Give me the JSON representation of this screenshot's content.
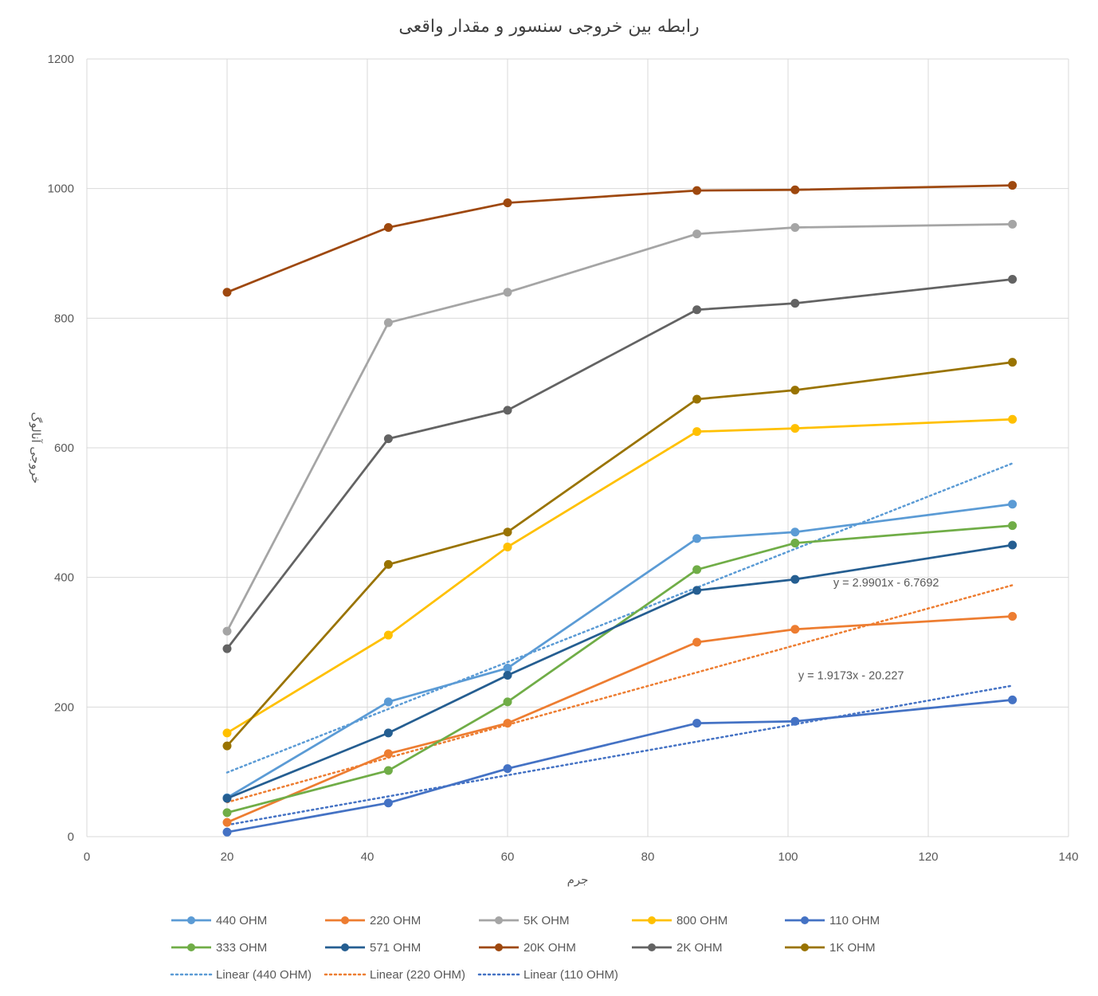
{
  "chart_data": {
    "type": "line",
    "title": "رابطه بین خروجی سنسور و مقدار واقعی",
    "xlabel": "جرم",
    "ylabel": "خروجی آنالوگ",
    "xlim": [
      0,
      140
    ],
    "ylim": [
      0,
      1200
    ],
    "xticks": [
      0,
      20,
      40,
      60,
      80,
      100,
      120,
      140
    ],
    "yticks": [
      0,
      200,
      400,
      600,
      800,
      1000,
      1200
    ],
    "x": [
      20,
      43,
      60,
      87,
      101,
      132
    ],
    "grid": true,
    "legend_position": "bottom",
    "series": [
      {
        "name": "440 OHM",
        "color": "#5B9BD5",
        "values": [
          60,
          208,
          260,
          460,
          470,
          513
        ]
      },
      {
        "name": "220 OHM",
        "color": "#ED7D31",
        "values": [
          22,
          128,
          175,
          300,
          320,
          340
        ]
      },
      {
        "name": "5K OHM",
        "color": "#A5A5A5",
        "values": [
          317,
          793,
          840,
          930,
          940,
          945
        ]
      },
      {
        "name": "800 OHM",
        "color": "#FFC000",
        "values": [
          160,
          311,
          447,
          625,
          630,
          644
        ]
      },
      {
        "name": "110 OHM",
        "color": "#4472C4",
        "values": [
          7,
          52,
          105,
          175,
          178,
          211
        ]
      },
      {
        "name": "333 OHM",
        "color": "#70AD47",
        "values": [
          37,
          102,
          208,
          412,
          453,
          480
        ]
      },
      {
        "name": "571 OHM",
        "color": "#255E91",
        "values": [
          59,
          160,
          249,
          380,
          397,
          450
        ]
      },
      {
        "name": "20K OHM",
        "color": "#9E480E",
        "values": [
          840,
          940,
          978,
          997,
          998,
          1005
        ]
      },
      {
        "name": "2K OHM",
        "color": "#636363",
        "values": [
          290,
          614,
          658,
          813,
          823,
          860
        ]
      },
      {
        "name": "1K OHM",
        "color": "#997300",
        "values": [
          140,
          420,
          470,
          675,
          689,
          732
        ]
      }
    ],
    "trendlines": [
      {
        "name": "Linear (440 OHM)",
        "color": "#5B9BD5",
        "x_range": [
          20,
          132
        ],
        "y_range": [
          99,
          576
        ]
      },
      {
        "name": "Linear (220 OHM)",
        "color": "#ED7D31",
        "x_range": [
          20,
          132
        ],
        "y_range": [
          53,
          388
        ]
      },
      {
        "name": "Linear (110 OHM)",
        "color": "#4472C4",
        "x_range": [
          20,
          132
        ],
        "y_range": [
          18,
          233
        ]
      }
    ],
    "annotations": [
      {
        "text": "y = 2.9901x - 6.7692",
        "anchor_x": 114,
        "anchor_y": 386
      },
      {
        "text": "y = 1.9173x - 20.227",
        "anchor_x": 109,
        "anchor_y": 243
      }
    ]
  }
}
